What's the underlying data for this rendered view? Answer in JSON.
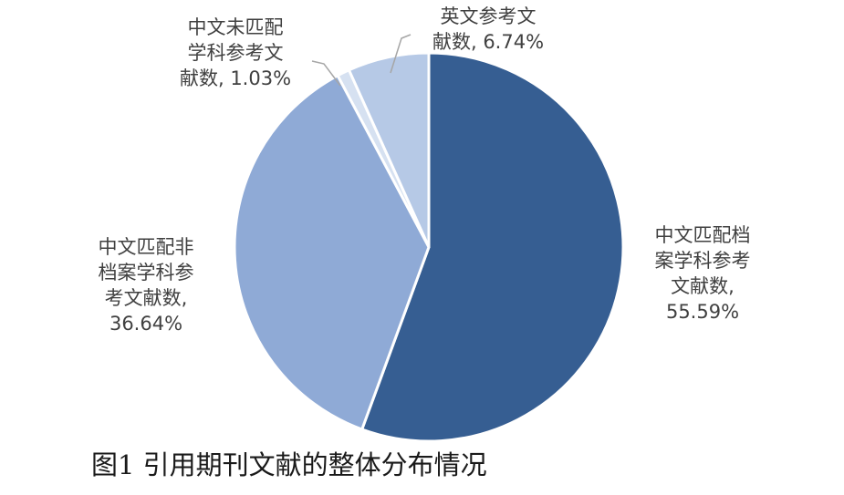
{
  "chart_data": {
    "type": "pie",
    "caption": "图1 引用期刊文献的整体分布情况",
    "slices": [
      {
        "name": "中文匹配档案学科参考文献数",
        "value": 55.59,
        "percent_label": "55.59%",
        "color": "#365e92",
        "label_lines": [
          "中文匹配档",
          "案学科参考",
          "文献数,",
          "55.59%"
        ]
      },
      {
        "name": "中文匹配非档案学科参考文献数",
        "value": 36.64,
        "percent_label": "36.64%",
        "color": "#8faad6",
        "label_lines": [
          "中文匹配非",
          "档案学科参",
          "考文献数,",
          "36.64%"
        ]
      },
      {
        "name": "中文未匹配学科参考文献数",
        "value": 1.03,
        "percent_label": "1.03%",
        "color": "#d6e1f1",
        "label_lines": [
          "中文未匹配",
          "学科参考文",
          "献数, 1.03%"
        ]
      },
      {
        "name": "英文参考文献数",
        "value": 6.74,
        "percent_label": "6.74%",
        "color": "#b6c9e6",
        "label_lines": [
          "英文参考文",
          "献数, 6.74%"
        ]
      }
    ]
  }
}
